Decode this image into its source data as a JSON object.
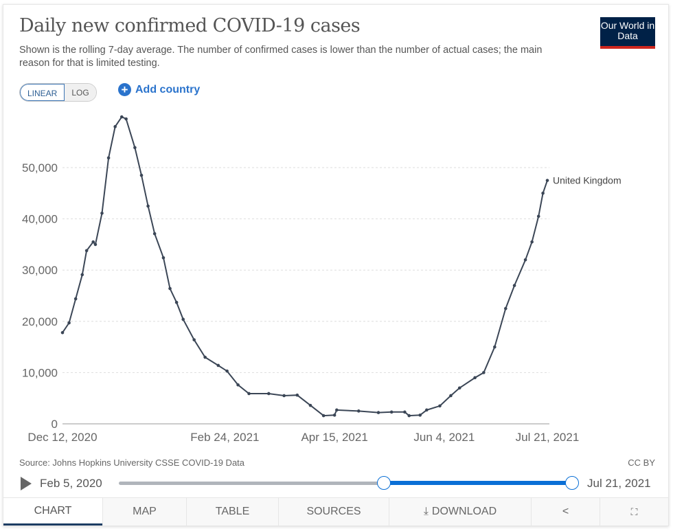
{
  "header": {
    "title": "Daily new confirmed COVID-19 cases",
    "subtitle": "Shown is the rolling 7-day average. The number of confirmed cases is lower than the number of actual cases; the main reason for that is limited testing.",
    "logo": "Our World in Data"
  },
  "controls": {
    "linear": "LINEAR",
    "log": "LOG",
    "add_country": "Add country",
    "selected_scale": "linear"
  },
  "footer": {
    "source": "Source: Johns Hopkins University CSSE COVID-19 Data",
    "license": "CC BY"
  },
  "timeline": {
    "start_label": "Feb 5, 2020",
    "end_label": "Jul 21, 2021",
    "selected_start": "Dec 12, 2020",
    "selected_end": "Jul 21, 2021"
  },
  "tabs": [
    {
      "label": "CHART"
    },
    {
      "label": "MAP"
    },
    {
      "label": "TABLE"
    },
    {
      "label": "SOURCES"
    },
    {
      "label": "DOWNLOAD"
    },
    {
      "label": "",
      "icon": "share-icon"
    },
    {
      "label": "",
      "icon": "fullscreen-icon"
    }
  ],
  "colors": {
    "line": "#3b4656",
    "accent": "#0a6fd6"
  },
  "chart_data": {
    "type": "line",
    "title": "",
    "xlabel": "",
    "ylabel": "",
    "ylim": [
      0,
      60000
    ],
    "grid": true,
    "yticks": [
      0,
      10000,
      20000,
      30000,
      40000,
      50000
    ],
    "ytick_labels": [
      "0",
      "10,000",
      "20,000",
      "30,000",
      "40,000",
      "50,000"
    ],
    "xticks": [
      "2020-12-12",
      "2021-02-24",
      "2021-04-15",
      "2021-06-04",
      "2021-07-21"
    ],
    "xtick_labels": [
      "Dec 12, 2020",
      "Feb 24, 2021",
      "Apr 15, 2021",
      "Jun 4, 2021",
      "Jul 21, 2021"
    ],
    "series": [
      {
        "name": "United Kingdom",
        "points": [
          [
            "2020-12-12",
            17800
          ],
          [
            "2020-12-15",
            19700
          ],
          [
            "2020-12-18",
            24400
          ],
          [
            "2020-12-21",
            29100
          ],
          [
            "2020-12-23",
            33800
          ],
          [
            "2020-12-26",
            35500
          ],
          [
            "2020-12-27",
            35000
          ],
          [
            "2020-12-30",
            41100
          ],
          [
            "2021-01-02",
            51900
          ],
          [
            "2021-01-05",
            58000
          ],
          [
            "2021-01-08",
            59900
          ],
          [
            "2021-01-10",
            59500
          ],
          [
            "2021-01-14",
            53900
          ],
          [
            "2021-01-17",
            48500
          ],
          [
            "2021-01-20",
            42500
          ],
          [
            "2021-01-23",
            37100
          ],
          [
            "2021-01-27",
            32400
          ],
          [
            "2021-01-30",
            26400
          ],
          [
            "2021-02-02",
            23700
          ],
          [
            "2021-02-05",
            20400
          ],
          [
            "2021-02-10",
            16400
          ],
          [
            "2021-02-15",
            13000
          ],
          [
            "2021-02-21",
            11400
          ],
          [
            "2021-02-25",
            10300
          ],
          [
            "2021-03-02",
            7600
          ],
          [
            "2021-03-07",
            5900
          ],
          [
            "2021-03-16",
            5900
          ],
          [
            "2021-03-23",
            5500
          ],
          [
            "2021-03-29",
            5600
          ],
          [
            "2021-04-04",
            3600
          ],
          [
            "2021-04-10",
            1600
          ],
          [
            "2021-04-15",
            1700
          ],
          [
            "2021-04-16",
            2700
          ],
          [
            "2021-04-26",
            2500
          ],
          [
            "2021-05-05",
            2200
          ],
          [
            "2021-05-11",
            2300
          ],
          [
            "2021-05-17",
            2300
          ],
          [
            "2021-05-19",
            1600
          ],
          [
            "2021-05-24",
            1700
          ],
          [
            "2021-05-27",
            2700
          ],
          [
            "2021-06-02",
            3500
          ],
          [
            "2021-06-07",
            5500
          ],
          [
            "2021-06-11",
            7000
          ],
          [
            "2021-06-18",
            9000
          ],
          [
            "2021-06-22",
            10000
          ],
          [
            "2021-06-27",
            15000
          ],
          [
            "2021-07-02",
            22500
          ],
          [
            "2021-07-06",
            27000
          ],
          [
            "2021-07-11",
            32000
          ],
          [
            "2021-07-14",
            35500
          ],
          [
            "2021-07-17",
            40500
          ],
          [
            "2021-07-19",
            45000
          ],
          [
            "2021-07-21",
            47500
          ]
        ]
      }
    ]
  }
}
